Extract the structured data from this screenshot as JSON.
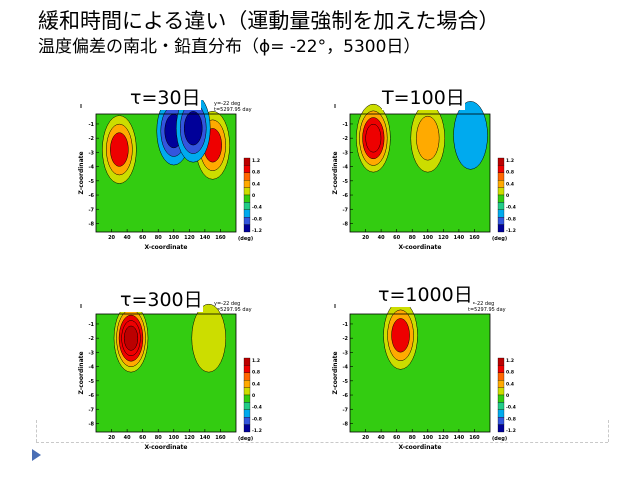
{
  "slide": {
    "title": "緩和時間による違い（運動量強制を加えた場合）",
    "subtitle": "温度偏差の南北・鉛直分布（ϕ= -22°，5300日）"
  },
  "colors": {
    "background_field": "#33cc11",
    "levels": [
      "#000099",
      "#3355dd",
      "#00aaee",
      "#22cc88",
      "#33cc11",
      "#ccdd00",
      "#ffaa00",
      "#ff6600",
      "#ee0000",
      "#bb0000"
    ]
  },
  "chart_data": [
    {
      "type": "heatmap",
      "title": "τ=30日",
      "corner_label": "Ⅱ",
      "header_right": [
        "y=-22 deg",
        "t=5297.95 day"
      ],
      "xlabel": "X-coordinate",
      "xunit": "(deg)",
      "ylabel": "Z-coordinate",
      "xticks": [
        20,
        40,
        60,
        80,
        100,
        120,
        140,
        160
      ],
      "yticks": [
        -1,
        -2,
        -3,
        -4,
        -5,
        -6,
        -7,
        -8
      ],
      "xlim": [
        0,
        180
      ],
      "ylim": [
        -8.6,
        -0.3
      ],
      "colorbar_ticks": [
        "1.2",
        "0.8",
        "0.4",
        "0",
        "-0.4",
        "-0.8",
        "-1.2"
      ],
      "features": [
        {
          "x": 30,
          "z": -2.8,
          "value": 1.2
        },
        {
          "x": 150,
          "z": -2.5,
          "value": 1.0
        },
        {
          "x": 100,
          "z": -1.5,
          "value": -1.2
        },
        {
          "x": 125,
          "z": -1.3,
          "value": -1.2
        }
      ]
    },
    {
      "type": "heatmap",
      "title": "T=100日",
      "corner_label": "Ⅱ",
      "header_right": [],
      "xlabel": "X-coordinate",
      "xunit": "(deg)",
      "ylabel": "Z-coordinate",
      "xticks": [
        20,
        40,
        60,
        80,
        100,
        120,
        140,
        160
      ],
      "yticks": [
        -1,
        -2,
        -3,
        -4,
        -5,
        -6,
        -7,
        -8
      ],
      "xlim": [
        0,
        180
      ],
      "ylim": [
        -8.6,
        -0.3
      ],
      "colorbar_ticks": [
        "1.2",
        "0.8",
        "0.4",
        "0",
        "-0.4",
        "-0.8",
        "-1.2"
      ],
      "features": [
        {
          "x": 30,
          "z": -2.0,
          "value": 1.6
        },
        {
          "x": 100,
          "z": -2.0,
          "value": 0.7
        },
        {
          "x": 155,
          "z": -1.8,
          "value": -0.4
        }
      ]
    },
    {
      "type": "heatmap",
      "title": "τ=300日",
      "corner_label": "Ⅱ",
      "header_right": [
        "y=-22 deg",
        "t=5297.95 day"
      ],
      "xlabel": "X-coordinate",
      "xunit": "(deg)",
      "ylabel": "Z-coordinate",
      "xticks": [
        20,
        40,
        60,
        80,
        100,
        120,
        140,
        160
      ],
      "yticks": [
        -1,
        -2,
        -3,
        -4,
        -5,
        -6,
        -7,
        -8
      ],
      "xlim": [
        0,
        180
      ],
      "ylim": [
        -8.6,
        -0.3
      ],
      "colorbar_ticks": [
        "1.2",
        "0.8",
        "0.4",
        "0",
        "-0.4",
        "-0.8",
        "-1.2"
      ],
      "features": [
        {
          "x": 45,
          "z": -2.0,
          "value": 1.8
        },
        {
          "x": 145,
          "z": -2.0,
          "value": 0.5
        }
      ]
    },
    {
      "type": "heatmap",
      "title": "τ=1000日",
      "corner_label": "Ⅱ",
      "header_right": [
        "y=-22 deg",
        "t=5297.95 day"
      ],
      "xlabel": "X-coordinate",
      "xunit": "(deg)",
      "ylabel": "Z-coordinate",
      "xticks": [
        20,
        40,
        60,
        80,
        100,
        120,
        140,
        160
      ],
      "yticks": [
        -1,
        -2,
        -3,
        -4,
        -5,
        -6,
        -7,
        -8
      ],
      "xlim": [
        0,
        180
      ],
      "ylim": [
        -8.6,
        -0.3
      ],
      "colorbar_ticks": [
        "1.2",
        "0.8",
        "0.4",
        "0",
        "-0.4",
        "-0.8",
        "-1.2"
      ],
      "features": [
        {
          "x": 65,
          "z": -1.8,
          "value": 1.0
        }
      ]
    }
  ]
}
